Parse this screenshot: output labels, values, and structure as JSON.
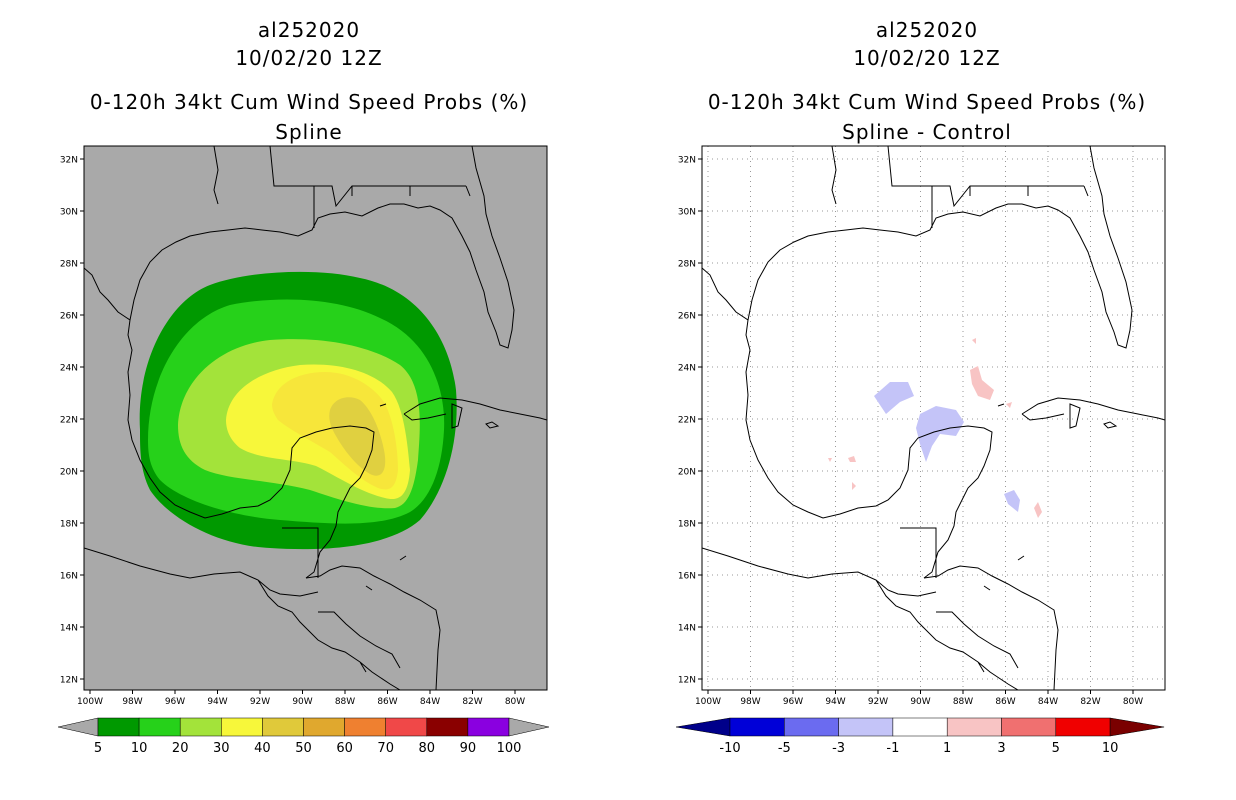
{
  "panels": [
    {
      "id": "left",
      "title_line1": "al252020",
      "title_line2": "10/02/20 12Z",
      "title_line3": "0-120h 34kt Cum Wind Speed Probs (%)",
      "title_line4": "Spline",
      "background": "#a9a9a9",
      "gridlines": false,
      "colorbar": {
        "labels": [
          "5",
          "10",
          "20",
          "30",
          "40",
          "50",
          "60",
          "70",
          "80",
          "90",
          "100"
        ],
        "colors": [
          "#009900",
          "#26d11a",
          "#a3e33a",
          "#f7f73a",
          "#e0c93a",
          "#e0a82e",
          "#ef8030",
          "#f04848",
          "#8a0000",
          "#8a00e0"
        ],
        "end_arrow_color": "#a9a9a9"
      }
    },
    {
      "id": "right",
      "title_line1": "al252020",
      "title_line2": "10/02/20 12Z",
      "title_line3": "0-120h 34kt Cum Wind Speed Probs (%)",
      "title_line4": "Spline - Control",
      "background": "#ffffff",
      "gridlines": true,
      "colorbar": {
        "labels": [
          "-10",
          "-5",
          "-3",
          "-1",
          "1",
          "3",
          "5",
          "10"
        ],
        "colors": [
          "#0000d8",
          "#6b6bf0",
          "#c4c4f8",
          "#ffffff",
          "#f8c4c4",
          "#f07070",
          "#f00000"
        ],
        "left_arrow_color": "#00008a",
        "right_arrow_color": "#7a0000"
      }
    }
  ],
  "axes": {
    "lat_labels": [
      "32N",
      "30N",
      "28N",
      "26N",
      "24N",
      "22N",
      "20N",
      "18N",
      "16N",
      "14N",
      "12N"
    ],
    "lon_labels": [
      "100W",
      "98W",
      "96W",
      "94W",
      "92W",
      "90W",
      "88W",
      "86W",
      "84W",
      "82W",
      "80W"
    ]
  }
}
